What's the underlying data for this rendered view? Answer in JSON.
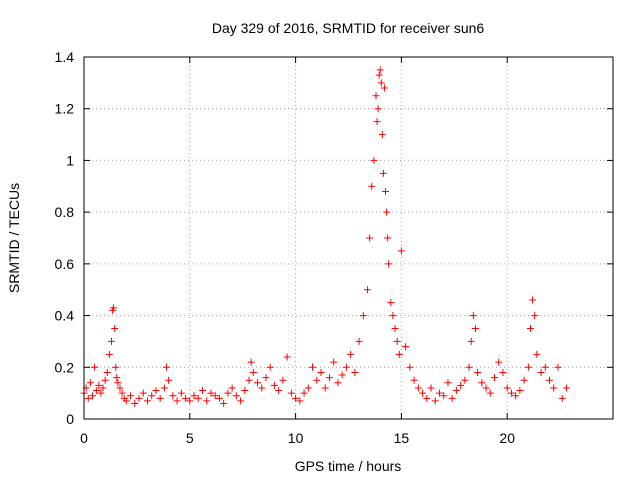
{
  "chart_data": {
    "type": "scatter",
    "title": "Day 329 of 2016, SRMTID for receiver sun6",
    "xlabel": "GPS time / hours",
    "ylabel": "SRMTID / TECUs",
    "xlim": [
      0,
      25
    ],
    "ylim": [
      0,
      1.4
    ],
    "xticks": [
      0,
      5,
      10,
      15,
      20
    ],
    "xtick_labels": [
      "0",
      "5",
      "10",
      "15",
      "20"
    ],
    "yticks": [
      0,
      0.2,
      0.4,
      0.6,
      0.8,
      1.0,
      1.2,
      1.4
    ],
    "ytick_labels": [
      "0",
      "0.2",
      "0.4",
      "0.6",
      "0.8",
      "1",
      "1.2",
      "1.4"
    ],
    "grid": true,
    "marker": "+",
    "color": "#ff0000",
    "series": [
      {
        "name": "sun6",
        "x": [
          0.0,
          0.1,
          0.2,
          0.3,
          0.4,
          0.5,
          0.6,
          0.7,
          0.8,
          0.9,
          1.0,
          1.1,
          1.2,
          1.3,
          1.35,
          1.4,
          1.45,
          1.5,
          1.55,
          1.6,
          1.7,
          1.8,
          1.9,
          2.0,
          2.2,
          2.4,
          2.6,
          2.8,
          3.0,
          3.2,
          3.4,
          3.6,
          3.8,
          3.9,
          4.0,
          4.2,
          4.4,
          4.6,
          4.8,
          5.0,
          5.2,
          5.4,
          5.6,
          5.8,
          6.0,
          6.2,
          6.4,
          6.6,
          6.8,
          7.0,
          7.2,
          7.4,
          7.6,
          7.8,
          7.9,
          8.0,
          8.2,
          8.4,
          8.6,
          8.8,
          9.0,
          9.2,
          9.4,
          9.6,
          9.8,
          10.0,
          10.2,
          10.4,
          10.6,
          10.8,
          11.0,
          11.2,
          11.4,
          11.6,
          11.8,
          12.0,
          12.2,
          12.4,
          12.6,
          12.8,
          13.0,
          13.2,
          13.4,
          13.5,
          13.6,
          13.7,
          13.8,
          13.85,
          13.9,
          13.95,
          14.0,
          14.05,
          14.1,
          14.15,
          14.2,
          14.25,
          14.3,
          14.35,
          14.4,
          14.5,
          14.6,
          14.7,
          14.8,
          14.9,
          15.0,
          15.2,
          15.4,
          15.6,
          15.8,
          16.0,
          16.2,
          16.4,
          16.6,
          16.8,
          17.0,
          17.2,
          17.4,
          17.6,
          17.8,
          18.0,
          18.2,
          18.3,
          18.4,
          18.5,
          18.6,
          18.8,
          19.0,
          19.2,
          19.4,
          19.6,
          19.8,
          20.0,
          20.2,
          20.4,
          20.6,
          20.8,
          21.0,
          21.1,
          21.2,
          21.3,
          21.4,
          21.6,
          21.8,
          22.0,
          22.2,
          22.4,
          22.6,
          22.8
        ],
        "y": [
          0.1,
          0.12,
          0.08,
          0.14,
          0.09,
          0.2,
          0.11,
          0.13,
          0.1,
          0.12,
          0.15,
          0.18,
          0.25,
          0.3,
          0.42,
          0.43,
          0.35,
          0.2,
          0.16,
          0.14,
          0.12,
          0.1,
          0.08,
          0.07,
          0.09,
          0.06,
          0.08,
          0.1,
          0.07,
          0.09,
          0.11,
          0.08,
          0.12,
          0.2,
          0.15,
          0.09,
          0.07,
          0.1,
          0.08,
          0.07,
          0.09,
          0.08,
          0.11,
          0.07,
          0.1,
          0.09,
          0.08,
          0.06,
          0.1,
          0.12,
          0.09,
          0.07,
          0.11,
          0.15,
          0.22,
          0.18,
          0.14,
          0.12,
          0.16,
          0.2,
          0.13,
          0.11,
          0.15,
          0.24,
          0.1,
          0.08,
          0.07,
          0.1,
          0.12,
          0.2,
          0.15,
          0.18,
          0.12,
          0.16,
          0.22,
          0.14,
          0.17,
          0.2,
          0.25,
          0.18,
          0.3,
          0.4,
          0.5,
          0.7,
          0.9,
          1.0,
          1.25,
          1.15,
          1.2,
          1.33,
          1.35,
          1.3,
          1.1,
          0.95,
          1.28,
          0.88,
          0.8,
          0.7,
          0.6,
          0.45,
          0.4,
          0.35,
          0.3,
          0.25,
          0.65,
          0.28,
          0.2,
          0.15,
          0.12,
          0.1,
          0.08,
          0.12,
          0.07,
          0.1,
          0.09,
          0.14,
          0.08,
          0.11,
          0.13,
          0.15,
          0.2,
          0.3,
          0.4,
          0.35,
          0.18,
          0.14,
          0.12,
          0.1,
          0.16,
          0.22,
          0.18,
          0.12,
          0.1,
          0.09,
          0.11,
          0.15,
          0.2,
          0.35,
          0.46,
          0.4,
          0.25,
          0.18,
          0.2,
          0.15,
          0.12,
          0.2,
          0.08,
          0.12
        ]
      }
    ]
  }
}
